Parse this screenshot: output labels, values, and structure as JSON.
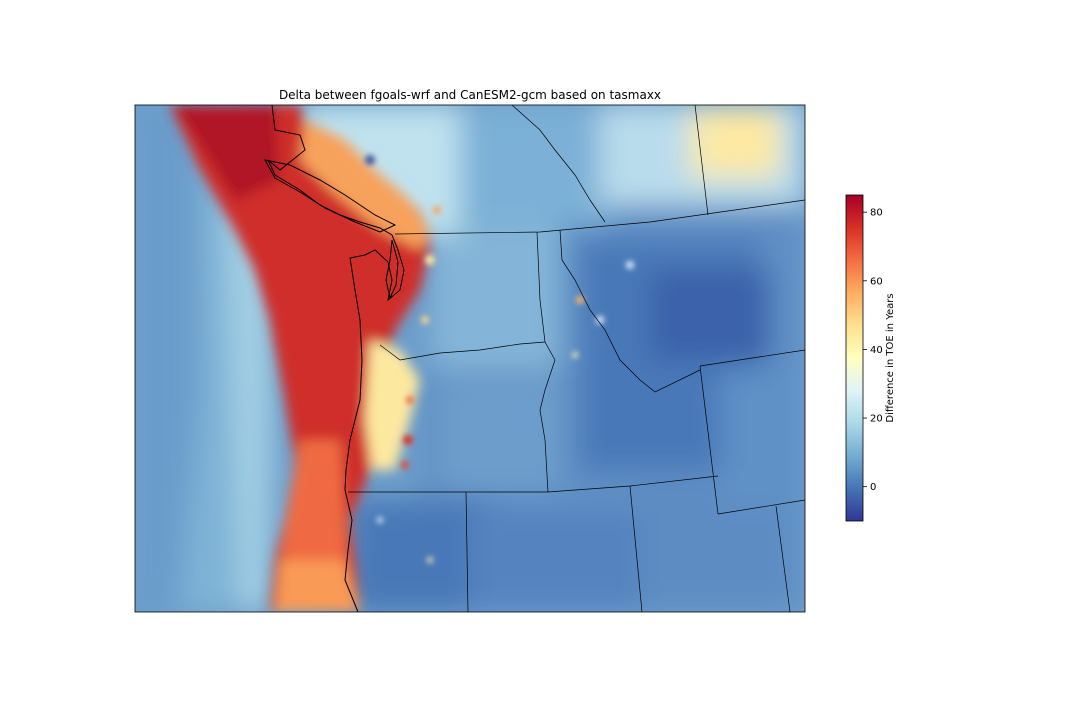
{
  "title": "Delta between fgoals-wrf and CanESM2-gcm based on tasmaxx",
  "colorbar": {
    "label": "Difference in TOE in Years",
    "vmin": -10,
    "vmax": 85,
    "ticks": [
      0,
      20,
      40,
      60,
      80
    ],
    "tick_labels": [
      "0",
      "20",
      "40",
      "60",
      "80"
    ],
    "colormap": "RdYlBu_r",
    "colors": [
      "#313695",
      "#4575b4",
      "#74add1",
      "#abd9e9",
      "#e0f3f8",
      "#ffffbf",
      "#fee090",
      "#fdae61",
      "#f46d43",
      "#d73027",
      "#a50026"
    ]
  },
  "map": {
    "region": "Pacific Northwest (WA, OR, ID, MT, WY, BC/AB)",
    "features": [
      "coastline",
      "state-borders",
      "country-border"
    ]
  }
}
